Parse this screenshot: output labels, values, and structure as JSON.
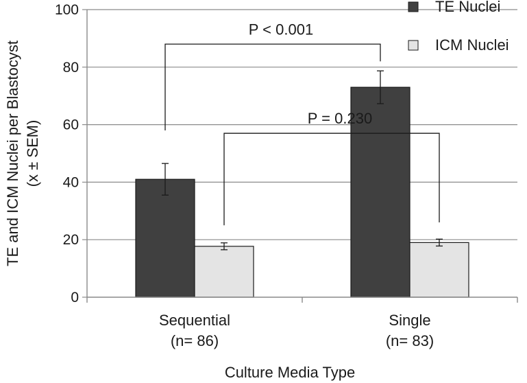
{
  "chart_data": {
    "type": "bar",
    "title": "",
    "xlabel": "Culture Media Type",
    "ylabel_lines": [
      "TE and ICM Nuclei per Blastocyst",
      "(x ± SEM)"
    ],
    "ylim": [
      0,
      100
    ],
    "yticks": [
      0,
      20,
      40,
      60,
      80,
      100
    ],
    "grid": true,
    "legend_position": "top-right",
    "categories": [
      {
        "lines": [
          "Sequential",
          "(n= 86)"
        ]
      },
      {
        "lines": [
          "Single",
          "(n= 83)"
        ]
      }
    ],
    "series": [
      {
        "name": "TE Nuclei",
        "color": "#404040",
        "values": [
          41,
          73
        ],
        "errors": [
          5.5,
          5.7
        ]
      },
      {
        "name": "ICM Nuclei",
        "color": "#e4e4e4",
        "values": [
          17.7,
          19
        ],
        "errors": [
          1.2,
          1.2
        ]
      }
    ],
    "annotations": [
      {
        "label": "P < 0.001",
        "from": {
          "category": 0,
          "series": 0
        },
        "to": {
          "category": 1,
          "series": 0
        },
        "bracket_y": 88,
        "left_end_y": 58,
        "right_end_y": 82
      },
      {
        "label": "P = 0.230",
        "from": {
          "category": 0,
          "series": 1
        },
        "to": {
          "category": 1,
          "series": 1
        },
        "bracket_y": 57,
        "left_end_y": 25,
        "right_end_y": 26
      }
    ]
  }
}
